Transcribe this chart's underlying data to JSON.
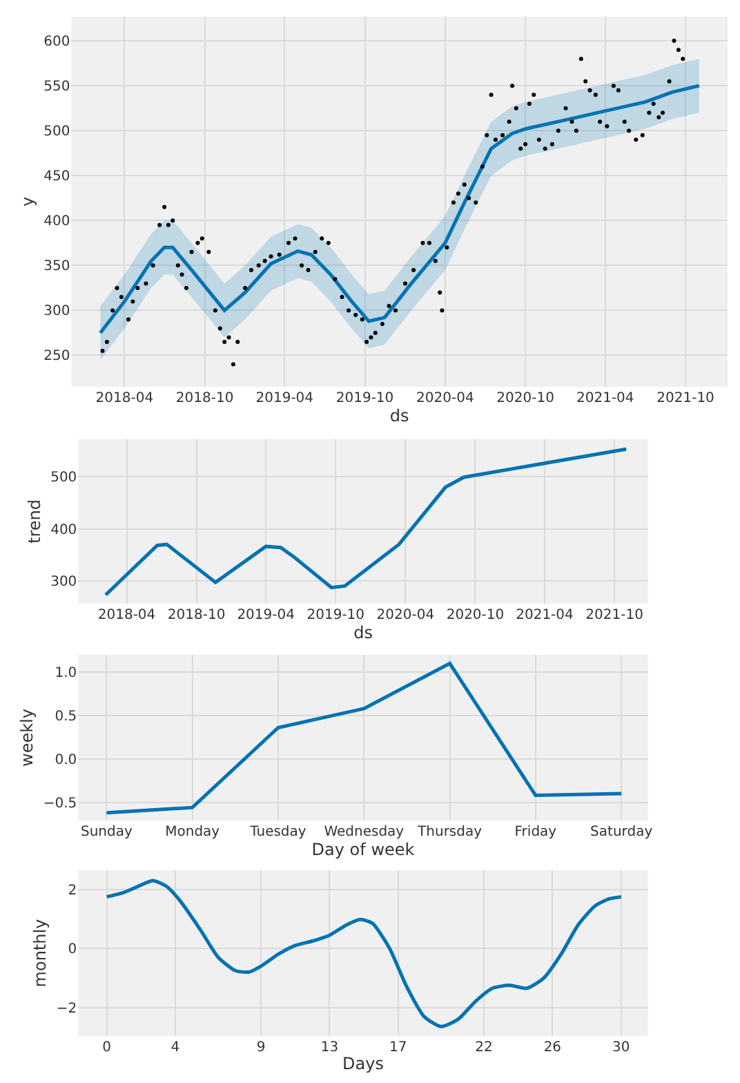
{
  "chart_data": [
    {
      "type": "line",
      "xlabel": "ds",
      "ylabel": "y",
      "xlim": [
        "2017-12-01",
        "2022-01-05"
      ],
      "ylim": [
        215,
        627
      ],
      "grid": true,
      "xticks": [
        {
          "value": "2018-04-01",
          "label": "2018-04"
        },
        {
          "value": "2018-10-01",
          "label": "2018-10"
        },
        {
          "value": "2019-04-01",
          "label": "2019-04"
        },
        {
          "value": "2019-10-01",
          "label": "2019-10"
        },
        {
          "value": "2020-04-01",
          "label": "2020-04"
        },
        {
          "value": "2020-10-01",
          "label": "2020-10"
        },
        {
          "value": "2021-04-01",
          "label": "2021-04"
        },
        {
          "value": "2021-10-01",
          "label": "2021-10"
        }
      ],
      "yticks": [
        250,
        300,
        350,
        400,
        450,
        500,
        550,
        600
      ],
      "series": [
        {
          "type": "line",
          "color": "#0072b2",
          "marker": "none",
          "x": [
            "2018-02-05",
            "2018-04-01",
            "2018-06-01",
            "2018-07-01",
            "2018-07-20",
            "2018-09-01",
            "2018-11-15",
            "2019-01-01",
            "2019-03-01",
            "2019-05-01",
            "2019-06-01",
            "2019-07-15",
            "2019-09-01",
            "2019-10-10",
            "2019-11-15",
            "2020-01-15",
            "2020-04-01",
            "2020-05-15",
            "2020-07-15",
            "2020-09-01",
            "2020-10-01",
            "2021-01-01",
            "2021-04-01",
            "2021-07-01",
            "2021-09-01",
            "2021-11-01"
          ],
          "values": [
            275,
            310,
            355,
            370,
            370,
            345,
            300,
            320,
            352,
            366,
            362,
            340,
            310,
            288,
            292,
            330,
            375,
            420,
            480,
            497,
            502,
            512,
            522,
            532,
            543,
            550
          ],
          "lower": [
            245,
            280,
            325,
            340,
            340,
            315,
            270,
            290,
            322,
            336,
            332,
            310,
            280,
            258,
            262,
            300,
            345,
            390,
            450,
            467,
            472,
            482,
            492,
            502,
            513,
            520
          ],
          "upper": [
            305,
            340,
            385,
            400,
            400,
            375,
            330,
            350,
            382,
            396,
            392,
            370,
            340,
            318,
            322,
            360,
            405,
            450,
            510,
            527,
            532,
            542,
            552,
            562,
            573,
            580
          ]
        },
        {
          "type": "scatter",
          "color": "#000000",
          "marker": "circle",
          "x": [
            "2018-02-10",
            "2018-02-20",
            "2018-03-05",
            "2018-03-15",
            "2018-03-25",
            "2018-04-10",
            "2018-04-20",
            "2018-05-01",
            "2018-05-20",
            "2018-06-05",
            "2018-06-20",
            "2018-07-01",
            "2018-07-10",
            "2018-07-20",
            "2018-08-01",
            "2018-08-10",
            "2018-08-20",
            "2018-09-01",
            "2018-09-15",
            "2018-09-25",
            "2018-10-10",
            "2018-10-25",
            "2018-11-05",
            "2018-11-15",
            "2018-11-25",
            "2018-12-05",
            "2018-12-15",
            "2019-01-01",
            "2019-01-15",
            "2019-02-01",
            "2019-02-15",
            "2019-03-01",
            "2019-03-20",
            "2019-04-10",
            "2019-04-25",
            "2019-05-10",
            "2019-05-25",
            "2019-06-10",
            "2019-06-25",
            "2019-07-10",
            "2019-07-25",
            "2019-08-10",
            "2019-08-25",
            "2019-09-10",
            "2019-09-25",
            "2019-10-05",
            "2019-10-15",
            "2019-10-25",
            "2019-11-10",
            "2019-11-25",
            "2019-12-10",
            "2020-01-01",
            "2020-01-20",
            "2020-02-10",
            "2020-02-25",
            "2020-03-10",
            "2020-03-20",
            "2020-03-25",
            "2020-04-05",
            "2020-04-20",
            "2020-05-01",
            "2020-05-15",
            "2020-05-25",
            "2020-06-10",
            "2020-06-25",
            "2020-07-05",
            "2020-07-15",
            "2020-07-25",
            "2020-08-10",
            "2020-08-25",
            "2020-09-01",
            "2020-09-10",
            "2020-09-20",
            "2020-10-01",
            "2020-10-10",
            "2020-10-20",
            "2020-11-01",
            "2020-11-15",
            "2020-12-01",
            "2020-12-15",
            "2021-01-01",
            "2021-01-15",
            "2021-01-25",
            "2021-02-05",
            "2021-02-15",
            "2021-02-25",
            "2021-03-10",
            "2021-03-20",
            "2021-04-05",
            "2021-04-20",
            "2021-05-01",
            "2021-05-15",
            "2021-05-25",
            "2021-06-10",
            "2021-06-25",
            "2021-07-10",
            "2021-07-20",
            "2021-08-01",
            "2021-08-10",
            "2021-08-25",
            "2021-09-05",
            "2021-09-15",
            "2021-09-25"
          ],
          "values": [
            255,
            265,
            300,
            325,
            315,
            290,
            310,
            325,
            330,
            350,
            395,
            415,
            395,
            400,
            350,
            340,
            325,
            365,
            375,
            380,
            365,
            300,
            280,
            265,
            270,
            240,
            265,
            325,
            345,
            350,
            355,
            360,
            362,
            375,
            380,
            350,
            345,
            365,
            380,
            375,
            335,
            315,
            300,
            295,
            290,
            265,
            270,
            275,
            285,
            305,
            300,
            330,
            345,
            375,
            375,
            355,
            320,
            300,
            370,
            420,
            430,
            440,
            425,
            420,
            460,
            495,
            540,
            490,
            495,
            510,
            550,
            525,
            480,
            485,
            530,
            540,
            490,
            480,
            485,
            500,
            525,
            510,
            500,
            580,
            555,
            545,
            540,
            510,
            505,
            550,
            545,
            510,
            500,
            490,
            495,
            520,
            530,
            515,
            520,
            555,
            600,
            590,
            580
          ]
        }
      ]
    },
    {
      "type": "line",
      "xlabel": "ds",
      "ylabel": "trend",
      "xlim": [
        "2017-11-25",
        "2021-12-28"
      ],
      "ylim": [
        256,
        572
      ],
      "grid": true,
      "marker": "none",
      "xticks": [
        {
          "value": "2018-04-01",
          "label": "2018-04"
        },
        {
          "value": "2018-10-01",
          "label": "2018-10"
        },
        {
          "value": "2019-04-01",
          "label": "2019-04"
        },
        {
          "value": "2019-10-01",
          "label": "2019-10"
        },
        {
          "value": "2020-04-01",
          "label": "2020-04"
        },
        {
          "value": "2020-10-01",
          "label": "2020-10"
        },
        {
          "value": "2021-04-01",
          "label": "2021-04"
        },
        {
          "value": "2021-10-01",
          "label": "2021-10"
        }
      ],
      "yticks": [
        300,
        400,
        500
      ],
      "series": [
        {
          "color": "#0072b2",
          "x": [
            "2018-02-05",
            "2018-06-20",
            "2018-07-15",
            "2018-11-20",
            "2019-04-01",
            "2019-05-10",
            "2019-06-15",
            "2019-09-20",
            "2019-10-25",
            "2020-03-15",
            "2020-07-15",
            "2020-09-01",
            "2021-11-01"
          ],
          "values": [
            273,
            368,
            370,
            297,
            366,
            364,
            345,
            287,
            290,
            370,
            480,
            499,
            553
          ]
        }
      ]
    },
    {
      "type": "line",
      "xlabel": "Day of week",
      "ylabel": "weekly",
      "ylim": [
        -0.71,
        1.2
      ],
      "grid": true,
      "marker": "none",
      "categories": [
        "Sunday",
        "Monday",
        "Tuesday",
        "Wednesday",
        "Thursday",
        "Friday",
        "Saturday"
      ],
      "yticks": [
        {
          "value": -0.5,
          "label": "−0.5"
        },
        {
          "value": 0,
          "label": "0.0"
        },
        {
          "value": 0.5,
          "label": "0.5"
        },
        {
          "value": 1,
          "label": "1.0"
        }
      ],
      "series": [
        {
          "color": "#0072b2",
          "values": [
            -0.62,
            -0.56,
            0.36,
            0.58,
            1.1,
            -0.42,
            -0.4
          ]
        }
      ]
    },
    {
      "type": "line",
      "xlabel": "Days",
      "ylabel": "monthly",
      "xlim": [
        -1.66,
        31.57
      ],
      "ylim": [
        -2.97,
        2.65
      ],
      "grid": true,
      "marker": "none",
      "xticks": [
        0,
        4,
        9,
        13,
        17,
        22,
        26,
        30
      ],
      "yticks": [
        {
          "value": -2,
          "label": "−2"
        },
        0,
        2
      ],
      "series": [
        {
          "color": "#0072b2",
          "x": [
            0,
            1,
            2,
            2.7,
            3.5,
            4.3,
            5.5,
            6.5,
            7.5,
            8.3,
            9,
            10,
            11,
            12,
            13,
            14,
            14.8,
            15.5,
            16.5,
            17.5,
            18.5,
            19.5,
            20.5,
            21.5,
            22.5,
            23.5,
            24.5,
            25.5,
            26.5,
            27.5,
            28.5,
            29.3,
            30
          ],
          "values": [
            1.75,
            1.9,
            2.15,
            2.3,
            2.1,
            1.6,
            0.6,
            -0.3,
            -0.75,
            -0.8,
            -0.6,
            -0.2,
            0.1,
            0.25,
            0.45,
            0.8,
            0.98,
            0.85,
            0.0,
            -1.3,
            -2.3,
            -2.65,
            -2.4,
            -1.8,
            -1.35,
            -1.25,
            -1.35,
            -1.0,
            -0.2,
            0.8,
            1.45,
            1.68,
            1.75
          ]
        }
      ]
    }
  ]
}
